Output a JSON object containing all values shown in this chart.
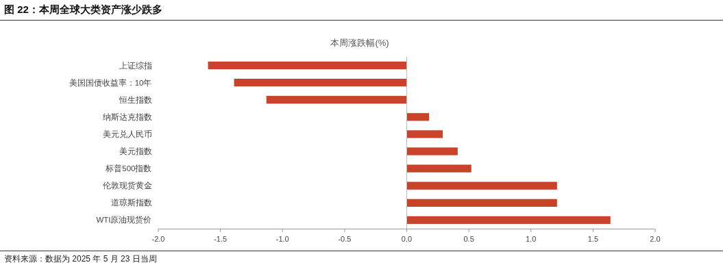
{
  "chart_data": {
    "type": "bar",
    "orientation": "horizontal",
    "title": "图 22：本周全球大类资产涨少跌多",
    "subtitle": "本周涨跌幅(%)",
    "categories": [
      "上证综指",
      "美国国债收益率：10年",
      "恒生指数",
      "纳斯达克指数",
      "美元兑人民币",
      "美元指数",
      "标普500指数",
      "伦敦现货黄金",
      "道琼斯指数",
      "WTI原油现货价"
    ],
    "values": [
      -1.6,
      -1.39,
      -1.13,
      0.18,
      0.29,
      0.41,
      0.52,
      1.21,
      1.21,
      1.64
    ],
    "color": "#c8432a",
    "xlim": [
      -2,
      2
    ],
    "xticks": [
      {
        "value": -2,
        "label": "-2.0"
      },
      {
        "value": -1.5,
        "label": "-1.5"
      },
      {
        "value": -1,
        "label": "-1.0"
      },
      {
        "value": -0.5,
        "label": "-0.5"
      },
      {
        "value": 0,
        "label": "0.0"
      },
      {
        "value": 0.5,
        "label": "0.5"
      },
      {
        "value": 1,
        "label": "1.0"
      },
      {
        "value": 1.5,
        "label": "1.5"
      },
      {
        "value": 2,
        "label": "2.0"
      }
    ],
    "annotations": [
      "资料来源：数据为 2025 年 5 月 23 日当周"
    ]
  }
}
